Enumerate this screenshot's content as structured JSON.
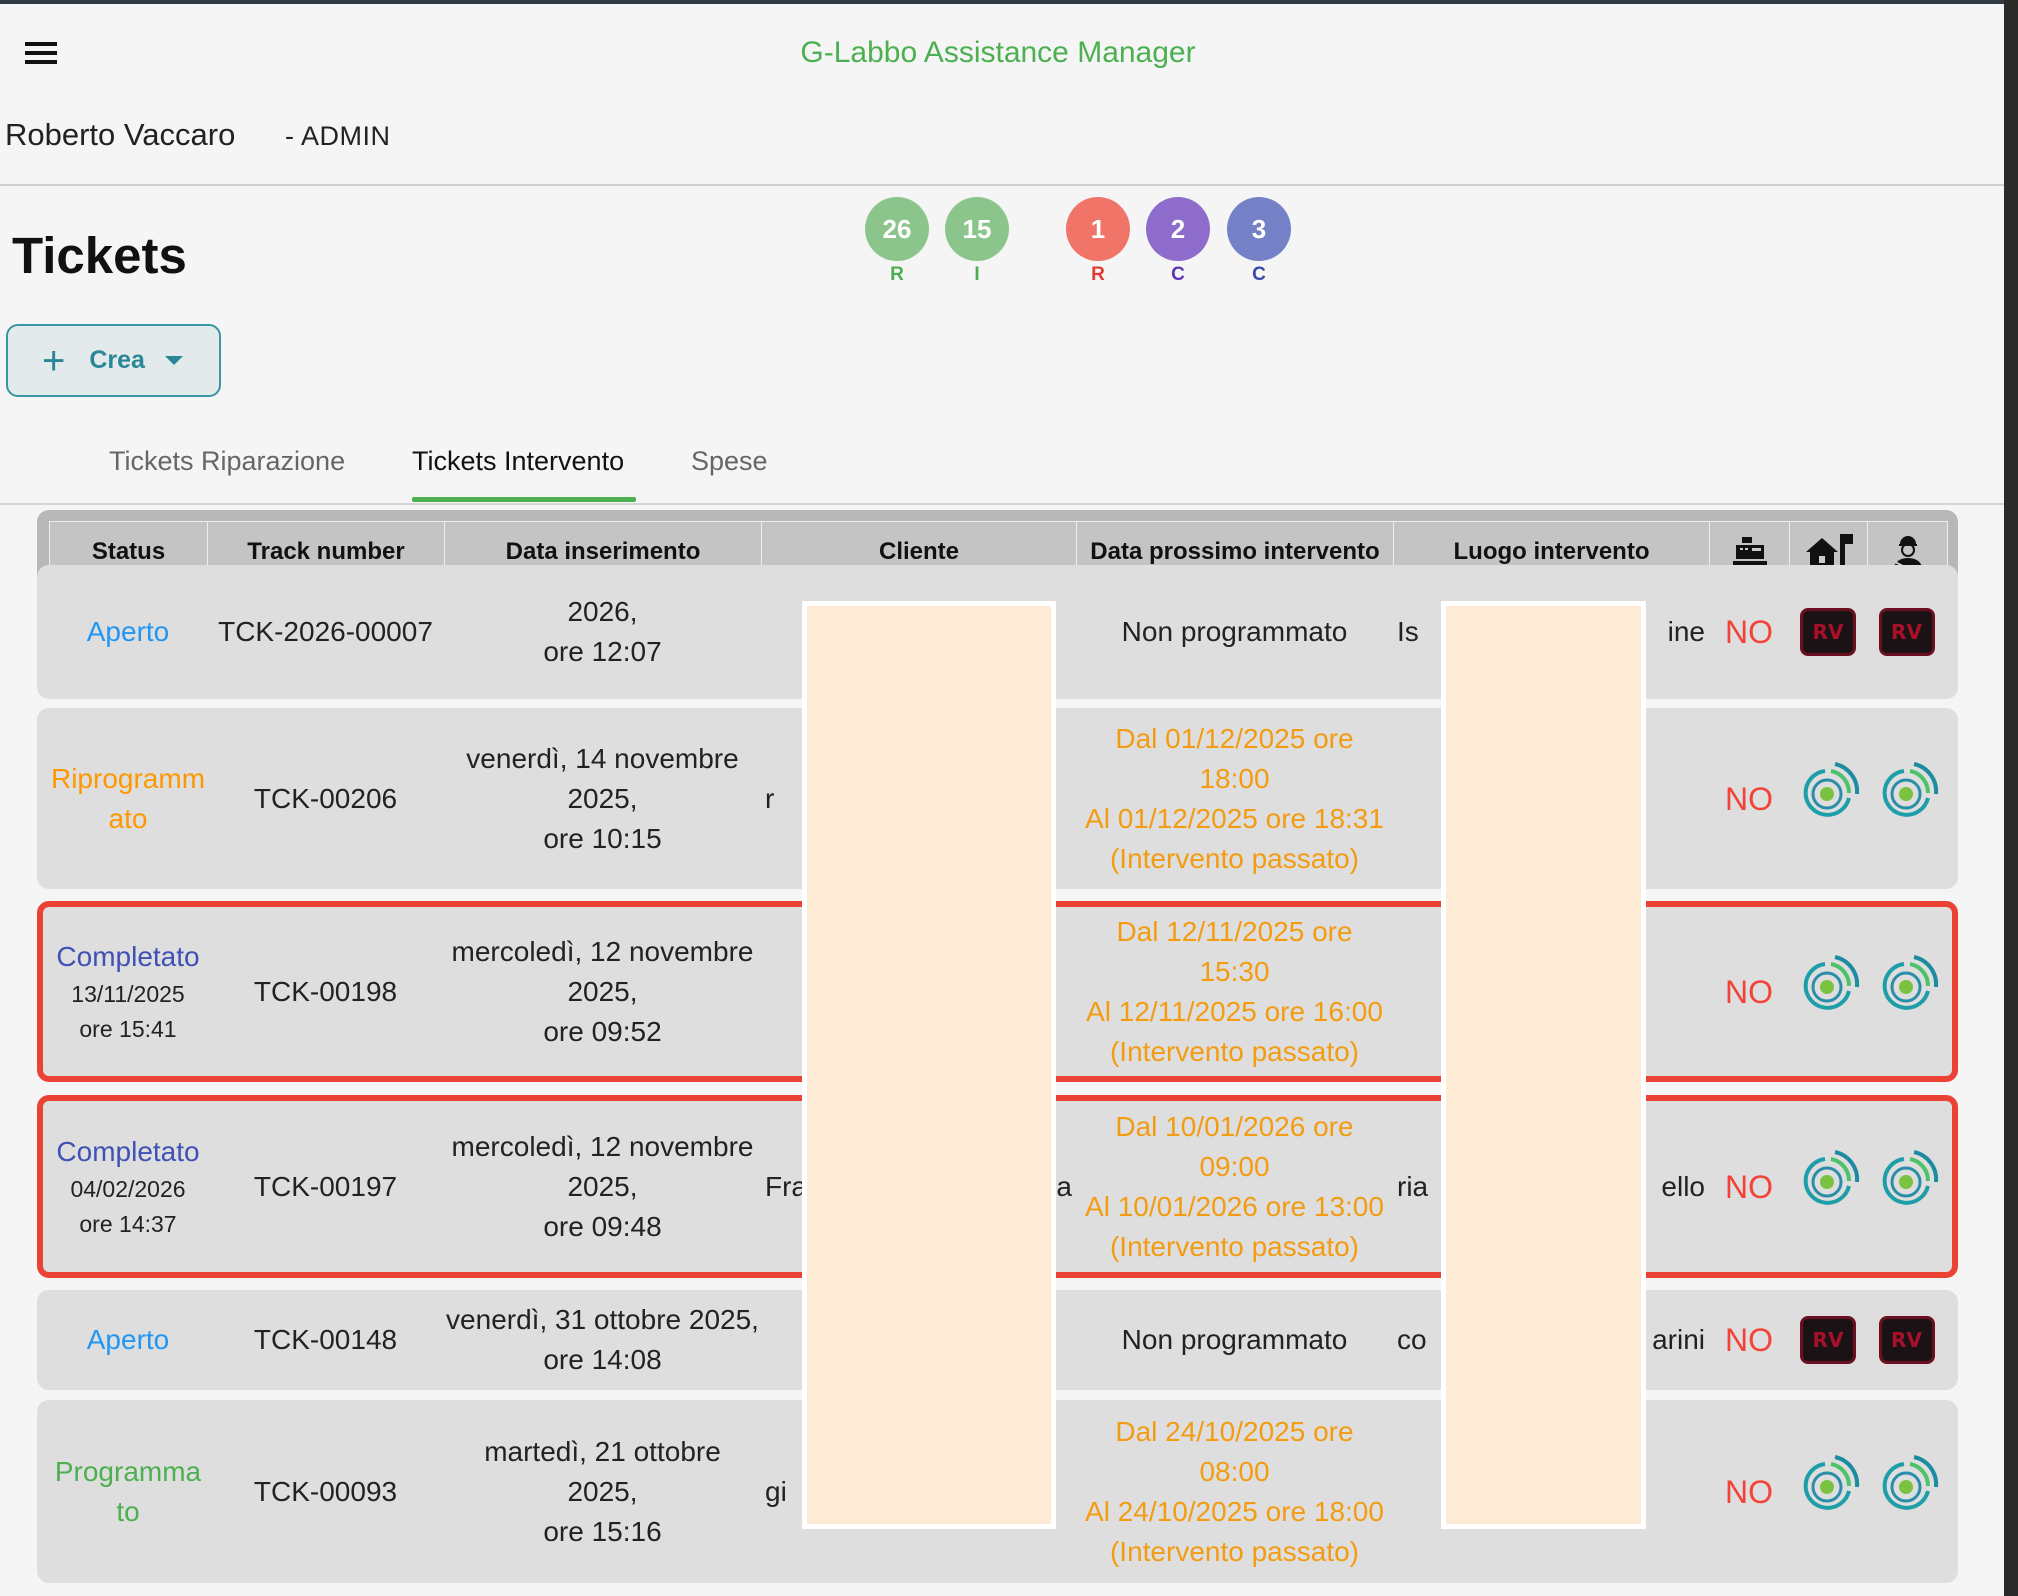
{
  "app": {
    "title": "G-Labbo Assistance Manager",
    "user": "Roberto Vaccaro",
    "role": "- ADMIN"
  },
  "page": {
    "title": "Tickets",
    "create_label": "Crea"
  },
  "badges": [
    {
      "count": "26",
      "label": "R",
      "color": "#8cc58c",
      "label_color": "#4caf50"
    },
    {
      "count": "15",
      "label": "I",
      "color": "#8cc58c",
      "label_color": "#4caf50"
    },
    {
      "count": "1",
      "label": "R",
      "color": "#f07468",
      "label_color": "#e53935"
    },
    {
      "count": "2",
      "label": "C",
      "color": "#8e6ccb",
      "label_color": "#5e35b1"
    },
    {
      "count": "3",
      "label": "C",
      "color": "#7481c6",
      "label_color": "#3949ab"
    }
  ],
  "tabs": [
    {
      "label": "Tickets Riparazione"
    },
    {
      "label": "Tickets Intervento",
      "active": true
    },
    {
      "label": "Spese"
    }
  ],
  "table": {
    "headers": [
      "Status",
      "Track number",
      "Data inserimento",
      "Cliente",
      "Data prossimo intervento",
      "Luogo intervento"
    ],
    "header_icons": [
      "cash-register-icon",
      "house-flag-icon",
      "technician-icon"
    ],
    "rows": [
      {
        "status": "Aperto",
        "status_color": "#2196f3",
        "status_sub": "",
        "track": "TCK-2026-00007",
        "date": "2026,\nore 12:07",
        "cliente_l": "",
        "cliente_r": "",
        "next": "Non programmato",
        "next_orange": false,
        "luogo_l": "Is",
        "luogo_r": "ine",
        "flag": "NO",
        "icons": "rv",
        "highlight": false
      },
      {
        "status": "Riprogramm\nato",
        "status_color": "#ff9800",
        "status_sub": "",
        "track": "TCK-00206",
        "date": "venerdì, 14 novembre\n2025,\nore 10:15",
        "cliente_l": "r",
        "cliente_r": "",
        "next": "Dal 01/12/2025 ore\n18:00\nAl 01/12/2025 ore 18:31\n(Intervento passato)",
        "next_orange": true,
        "luogo_l": "",
        "luogo_r": "",
        "flag": "NO",
        "icons": "target",
        "highlight": false
      },
      {
        "status": "Completato",
        "status_color": "#3f51b5",
        "status_sub": "13/11/2025\nore 15:41",
        "track": "TCK-00198",
        "date": "mercoledì, 12 novembre\n2025,\nore 09:52",
        "cliente_l": "",
        "cliente_r": "",
        "next": "Dal 12/11/2025 ore\n15:30\nAl 12/11/2025 ore 16:00\n(Intervento passato)",
        "next_orange": true,
        "luogo_l": "",
        "luogo_r": "",
        "flag": "NO",
        "icons": "target",
        "highlight": true
      },
      {
        "status": "Completato",
        "status_color": "#3f51b5",
        "status_sub": "04/02/2026\nore 14:37",
        "track": "TCK-00197",
        "date": "mercoledì, 12 novembre\n2025,\nore 09:48",
        "cliente_l": "Fra",
        "cliente_r": "ia",
        "next": "Dal 10/01/2026 ore\n09:00\nAl 10/01/2026 ore 13:00\n(Intervento passato)",
        "next_orange": true,
        "luogo_l": "ria",
        "luogo_r": "ello",
        "flag": "NO",
        "icons": "target",
        "highlight": true
      },
      {
        "status": "Aperto",
        "status_color": "#2196f3",
        "status_sub": "",
        "track": "TCK-00148",
        "date": "venerdì, 31 ottobre 2025,\nore 14:08",
        "cliente_l": "",
        "cliente_r": "",
        "next": "Non programmato",
        "next_orange": false,
        "luogo_l": "co",
        "luogo_r": "arini",
        "flag": "NO",
        "icons": "rv",
        "highlight": false
      },
      {
        "status": "Programma\nto",
        "status_color": "#4caf50",
        "status_sub": "",
        "track": "TCK-00093",
        "date": "martedì, 21 ottobre\n2025,\nore 15:16",
        "cliente_l": "gi",
        "cliente_r": "",
        "next": "Dal 24/10/2025 ore\n08:00\nAl 24/10/2025 ore 18:00\n(Intervento passato)",
        "next_orange": true,
        "luogo_l": "",
        "luogo_r": "",
        "flag": "NO",
        "icons": "target",
        "highlight": false
      }
    ],
    "rv_label": "RV"
  }
}
